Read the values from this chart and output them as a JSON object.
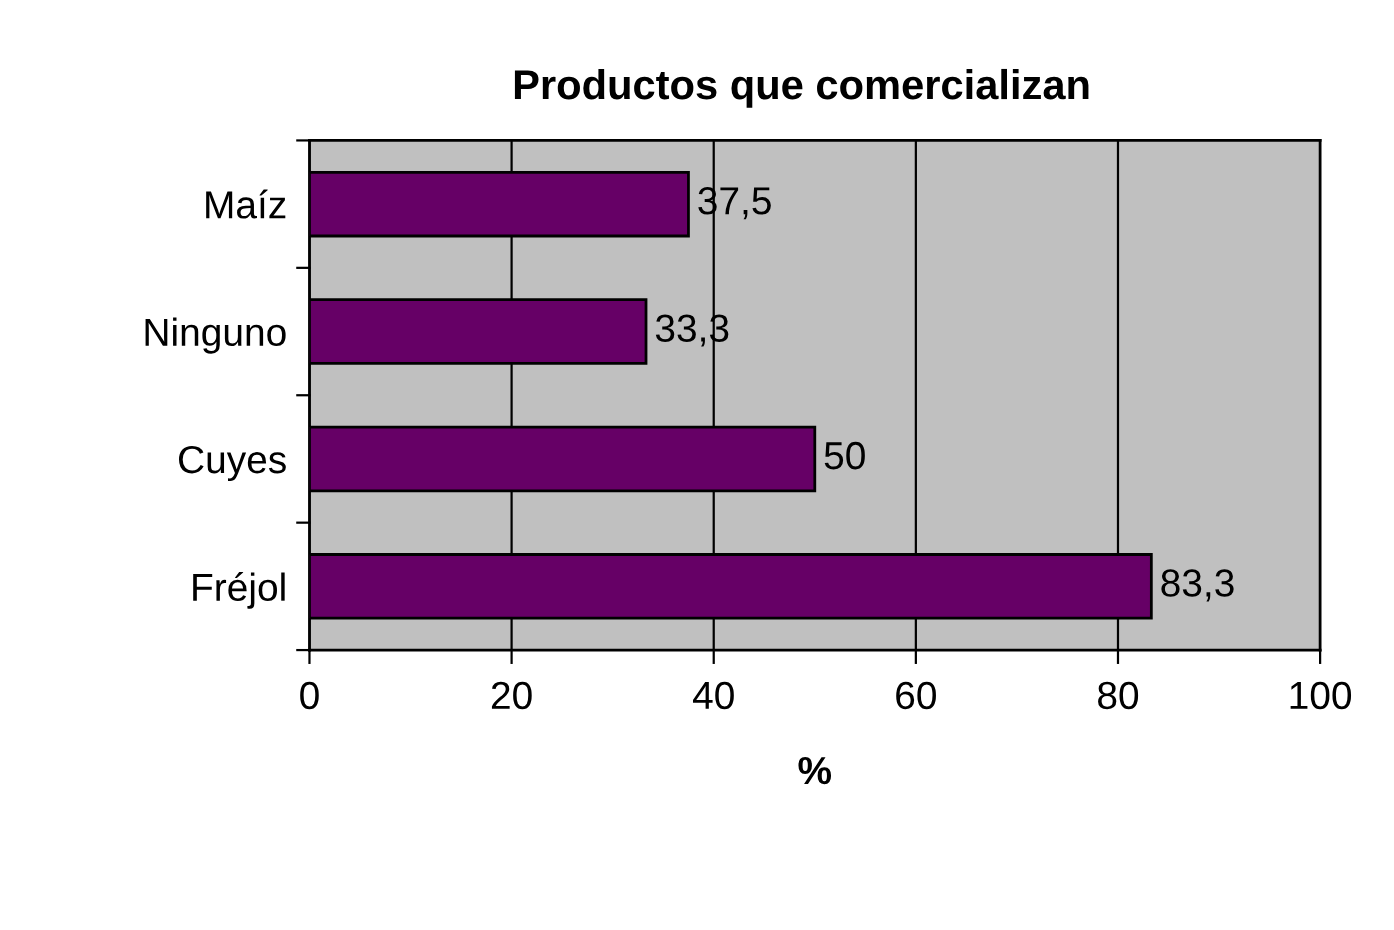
{
  "chart_data": {
    "type": "bar",
    "orientation": "horizontal",
    "title": "Productos que comercializan",
    "xlabel": "%",
    "categories": [
      "Maíz",
      "Ninguno",
      "Cuyes",
      "Fréjol"
    ],
    "values": [
      37.5,
      33.3,
      50,
      83.3
    ],
    "value_labels": [
      "37,5",
      "33,3",
      "50",
      "83,3"
    ],
    "color": "#660066",
    "xlim": [
      0,
      100
    ],
    "xticks": [
      0,
      20,
      40,
      60,
      80,
      100
    ],
    "grid": "x",
    "legend": false
  }
}
